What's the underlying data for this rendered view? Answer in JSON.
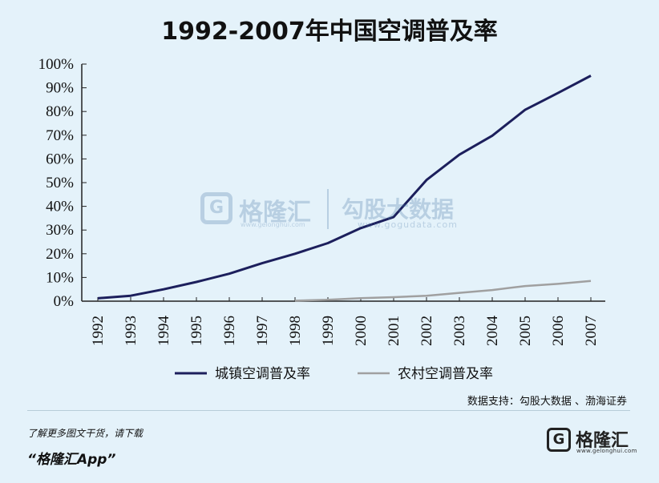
{
  "chart_data": {
    "type": "line",
    "title": "1992-2007年中国空调普及率",
    "xlabel": "",
    "ylabel": "",
    "x": [
      "1992",
      "1993",
      "1994",
      "1995",
      "1996",
      "1997",
      "1998",
      "1999",
      "2000",
      "2001",
      "2002",
      "2003",
      "2004",
      "2005",
      "2006",
      "2007"
    ],
    "ylim": [
      0,
      100
    ],
    "yticks": [
      "0%",
      "10%",
      "20%",
      "30%",
      "40%",
      "50%",
      "60%",
      "70%",
      "80%",
      "90%",
      "100%"
    ],
    "series": [
      {
        "name": "城镇空调普及率",
        "color": "#1c1f5c",
        "values": [
          1.2,
          2.3,
          5.0,
          8.1,
          11.6,
          16.0,
          20.0,
          24.5,
          30.8,
          35.5,
          51.1,
          61.8,
          69.8,
          80.7,
          87.8,
          95.1
        ]
      },
      {
        "name": "农村空调普及率",
        "color": "#a0a0a0",
        "values": [
          null,
          null,
          null,
          null,
          null,
          null,
          0.2,
          0.6,
          1.3,
          1.7,
          2.3,
          3.5,
          4.7,
          6.4,
          7.3,
          8.5
        ]
      }
    ],
    "legend": "bottom",
    "grid": false
  },
  "footer": {
    "source": "数据支持：勾股大数据 、渤海证券",
    "promo_line1": "了解更多图文干货，请下载",
    "promo_line2": "“格隆汇App”",
    "brand_name": "格隆汇",
    "brand_url": "www.gelonghui.com"
  },
  "watermark": {
    "brand1": "格隆汇",
    "url1": "www.gelonghui.com",
    "brand2": "勾股大数据",
    "url2": "www.gogudata.com"
  }
}
